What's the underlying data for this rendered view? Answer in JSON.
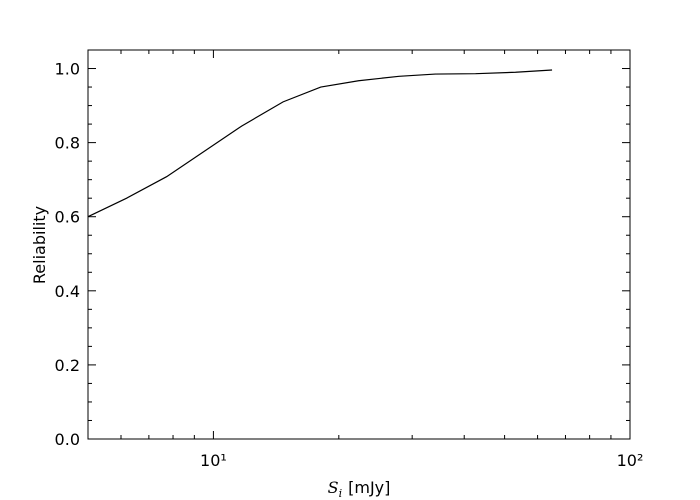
{
  "chart_data": {
    "type": "line",
    "ylabel": "Reliability",
    "xlabel": {
      "symbol": "S",
      "subscript": "i",
      "unit": "[mJy]"
    },
    "x": [
      5,
      6.19,
      7.72,
      11.7,
      14.7,
      18.1,
      22.3,
      27.9,
      34.1,
      42.6,
      53.1,
      65
    ],
    "series": [
      {
        "color": "#000000",
        "values": [
          0.6,
          0.65,
          0.708,
          0.845,
          0.91,
          0.95,
          0.967,
          0.979,
          0.985,
          0.986,
          0.99,
          0.996
        ]
      }
    ],
    "xscale": "log",
    "xlim": [
      5,
      100
    ],
    "xticks": [
      {
        "value": 10,
        "label": "10¹"
      },
      {
        "value": 100,
        "label": "10²"
      }
    ],
    "xminorticks": [
      6,
      7,
      8,
      9,
      20,
      30,
      40,
      50,
      60,
      70,
      80,
      90
    ],
    "ylim": [
      0,
      1.05
    ],
    "yticks": [
      {
        "value": 0,
        "label": "0.0"
      },
      {
        "value": 0.2,
        "label": "0.2"
      },
      {
        "value": 0.4,
        "label": "0.4"
      },
      {
        "value": 0.6,
        "label": "0.6"
      },
      {
        "value": 0.8,
        "label": "0.8"
      },
      {
        "value": 1.0,
        "label": "1.0"
      }
    ],
    "yminorticks": [
      0.05,
      0.1,
      0.15,
      0.25,
      0.3,
      0.35,
      0.45,
      0.5,
      0.55,
      0.65,
      0.7,
      0.75,
      0.85,
      0.9,
      0.95,
      1.05
    ],
    "grid": false
  }
}
